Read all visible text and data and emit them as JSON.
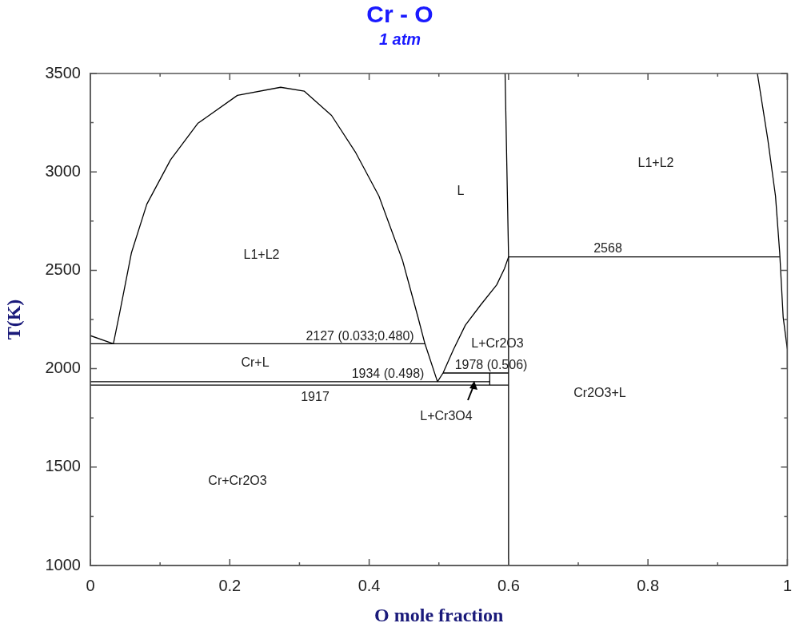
{
  "chart_data": {
    "type": "line",
    "title": "Cr - O",
    "subtitle": "1 atm",
    "xlabel": "O mole fraction",
    "ylabel": "T(K)",
    "xlim": [
      0,
      1
    ],
    "ylim": [
      1000,
      3500
    ],
    "xticks": [
      0,
      {
        "value": 0.1,
        "label": null
      },
      0.2,
      {
        "value": 0.3,
        "label": null
      },
      0.4,
      {
        "value": 0.5,
        "label": null
      },
      0.6,
      {
        "value": 0.7,
        "label": null
      },
      0.8,
      {
        "value": 0.9,
        "label": null
      },
      1
    ],
    "yticks": [
      1000,
      {
        "value": 1250,
        "label": null
      },
      1500,
      {
        "value": 1750,
        "label": null
      },
      2000,
      {
        "value": 2250,
        "label": null
      },
      2500,
      {
        "value": 2750,
        "label": null
      },
      3000,
      {
        "value": 3250,
        "label": null
      },
      3500
    ],
    "grid": false,
    "legend": false,
    "marker": "none",
    "line_style": "solid",
    "series": [
      {
        "color": "#000000",
        "x": [
          0.033,
          0.042,
          0.059,
          0.081,
          0.115,
          0.154,
          0.211,
          0.273,
          0.307,
          0.346,
          0.38,
          0.414,
          0.448,
          0.47,
          0.48,
          0.498
        ],
        "values": [
          2127,
          2283,
          2590,
          2836,
          3061,
          3246,
          3389,
          3430,
          3410,
          3287,
          3102,
          2877,
          2549,
          2262,
          2127,
          1934
        ]
      },
      {
        "color": "#000000",
        "x": [
          0,
          0.033
        ],
        "values": [
          2168,
          2127
        ]
      },
      {
        "color": "#000000",
        "x": [
          0.498,
          0.506,
          0.521,
          0.538,
          0.56,
          0.583,
          0.594,
          0.6
        ],
        "values": [
          1934,
          1978,
          2098,
          2221,
          2324,
          2426,
          2508,
          2568
        ]
      },
      {
        "color": "#000000",
        "x": [
          0.595,
          0.6,
          0.6
        ],
        "values": [
          3500,
          2568,
          1000
        ]
      },
      {
        "color": "#000000",
        "x": [
          0,
          0.48
        ],
        "values": [
          2127,
          2127
        ]
      },
      {
        "color": "#000000",
        "x": [
          0,
          0.573
        ],
        "values": [
          1934,
          1934
        ]
      },
      {
        "color": "#000000",
        "x": [
          0,
          0.6
        ],
        "values": [
          1917,
          1917
        ]
      },
      {
        "color": "#000000",
        "x": [
          0.506,
          0.6
        ],
        "values": [
          1978,
          1978
        ]
      },
      {
        "color": "#000000",
        "x": [
          0.573,
          0.573
        ],
        "values": [
          1917,
          1978
        ]
      },
      {
        "color": "#000000",
        "x": [
          0.6,
          0.989
        ],
        "values": [
          2568,
          2568
        ]
      },
      {
        "color": "#000000",
        "x": [
          0.957,
          0.972,
          0.983,
          0.989,
          0.994,
          1,
          1
        ],
        "values": [
          3500,
          3164,
          2877,
          2590,
          2262,
          2098,
          2000
        ]
      }
    ],
    "annotations": [
      "L1+L2",
      "L",
      "L1+L2",
      "2568",
      "2127 (0.033;0.480)",
      "Cr+L",
      "L+Cr2O3",
      "1934 (0.498)",
      "1978 (0.506)",
      "1917",
      "L+Cr3O4",
      "Cr2O3+L",
      "Cr+Cr2O3"
    ]
  }
}
